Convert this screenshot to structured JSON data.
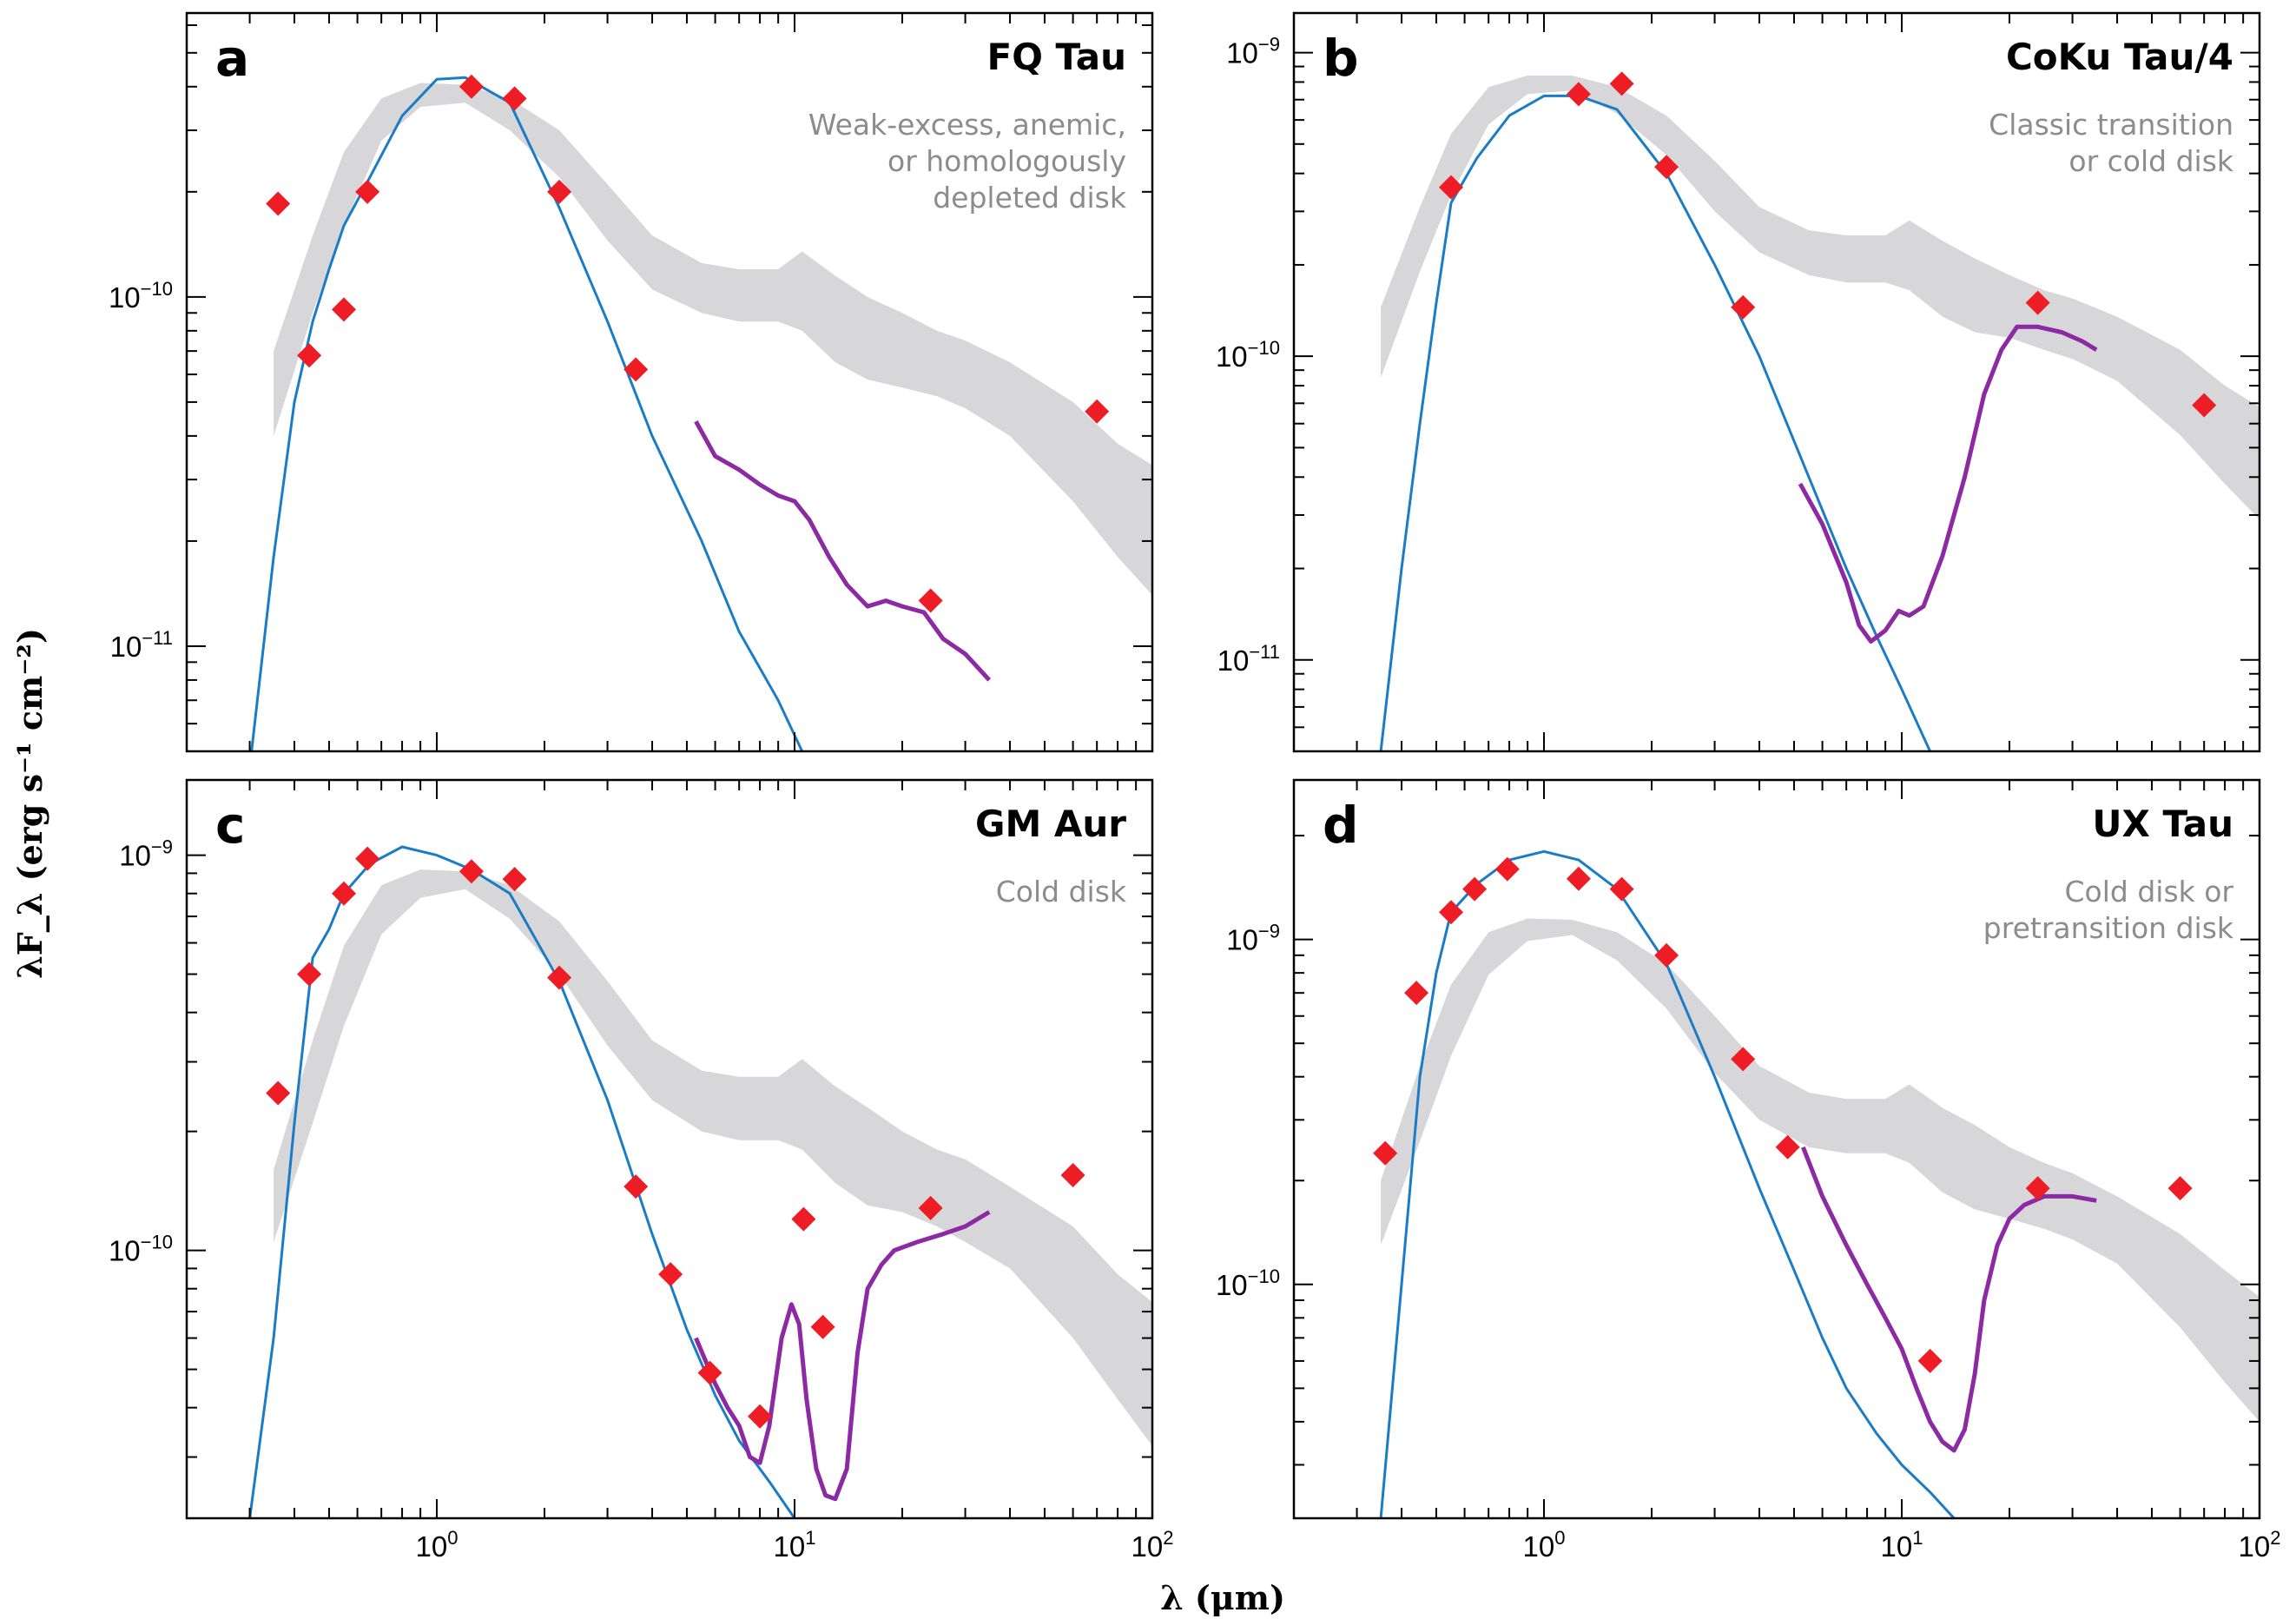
{
  "figure": {
    "xlabel": "λ (μm)",
    "ylabel": "λF_λ (erg s⁻¹ cm⁻²)"
  },
  "colors": {
    "photosphere": "#1a7cc6",
    "irs": "#8b2aa3",
    "photometry": "#ee1c24",
    "median_band": "#d7d7d9",
    "frame": "#000000",
    "class_text": "#8c8c8c"
  },
  "chart_data": [
    {
      "type": "line",
      "panel": "a",
      "star": "FQ Tau",
      "classification": [
        "Weak-excess, anemic,",
        "or homologously",
        "depleted disk"
      ],
      "x_scale": "log",
      "y_scale": "log",
      "xlim": [
        0.2,
        100
      ],
      "ylim": [
        5e-12,
        6.5e-10
      ],
      "y_ticks": [
        {
          "v": 1e-10,
          "m": "10",
          "e": "−10"
        },
        {
          "v": 1e-11,
          "m": "10",
          "e": "−11"
        }
      ],
      "x_ticks": [],
      "photosphere": {
        "x": [
          0.3,
          0.35,
          0.4,
          0.45,
          0.5,
          0.55,
          0.65,
          0.8,
          1.0,
          1.2,
          1.6,
          2.2,
          3.0,
          4.0,
          5.5,
          7.0,
          9.0,
          10.5
        ],
        "y": [
          4.5e-12,
          1.8e-11,
          5e-11,
          8.5e-11,
          1.2e-10,
          1.6e-10,
          2.2e-10,
          3.3e-10,
          4.2e-10,
          4.25e-10,
          3.6e-10,
          1.8e-10,
          8.5e-11,
          4e-11,
          2e-11,
          1.1e-11,
          7e-12,
          5e-12
        ]
      },
      "irs": {
        "x": [
          5.3,
          6.0,
          7.0,
          8.0,
          9.0,
          10.0,
          11.0,
          12.5,
          14.0,
          16.0,
          18.0,
          20.0,
          23.0,
          26.0,
          30.0,
          35.0
        ],
        "y": [
          4.4e-11,
          3.5e-11,
          3.2e-11,
          2.9e-11,
          2.7e-11,
          2.6e-11,
          2.3e-11,
          1.8e-11,
          1.5e-11,
          1.3e-11,
          1.35e-11,
          1.3e-11,
          1.25e-11,
          1.05e-11,
          9.5e-12,
          8e-12
        ]
      },
      "photometry": {
        "x": [
          0.36,
          0.44,
          0.55,
          0.64,
          1.25,
          1.65,
          2.2,
          3.6,
          24,
          70
        ],
        "y": [
          1.85e-10,
          6.8e-11,
          9.2e-11,
          2e-10,
          4e-10,
          3.7e-10,
          2e-10,
          6.2e-11,
          1.35e-11,
          4.7e-11
        ]
      },
      "median_band": {
        "x": [
          0.35,
          0.45,
          0.55,
          0.7,
          0.9,
          1.2,
          1.6,
          2.2,
          3.0,
          4.0,
          5.5,
          7.0,
          9.0,
          10.5,
          13.0,
          16.0,
          20.0,
          25.0,
          30.0,
          40.0,
          60.0,
          80.0,
          100.0
        ],
        "lo": [
          4e-11,
          9e-11,
          1.6e-10,
          2.8e-10,
          3.5e-10,
          3.6e-10,
          3e-10,
          2.2e-10,
          1.45e-10,
          1.05e-10,
          9e-11,
          8.5e-11,
          8.5e-11,
          8e-11,
          6.5e-11,
          5.8e-11,
          5.5e-11,
          5.2e-11,
          4.8e-11,
          4e-11,
          2.6e-11,
          1.8e-11,
          1.4e-11
        ],
        "hi": [
          7e-11,
          1.5e-10,
          2.6e-10,
          3.7e-10,
          4.1e-10,
          4.05e-10,
          3.7e-10,
          3e-10,
          2.1e-10,
          1.5e-10,
          1.25e-10,
          1.2e-10,
          1.2e-10,
          1.35e-10,
          1.15e-10,
          1e-10,
          9e-11,
          8e-11,
          7.5e-11,
          6.5e-11,
          5e-11,
          3.8e-11,
          3.3e-11
        ]
      }
    },
    {
      "type": "line",
      "panel": "b",
      "star": "CoKu Tau/4",
      "classification": [
        "Classic transition",
        "or cold disk"
      ],
      "x_scale": "log",
      "y_scale": "log",
      "xlim": [
        0.2,
        100
      ],
      "ylim": [
        5e-12,
        1.35e-09
      ],
      "y_ticks": [
        {
          "v": 1e-09,
          "m": "10",
          "e": "−9"
        },
        {
          "v": 1e-10,
          "m": "10",
          "e": "−10"
        },
        {
          "v": 1e-11,
          "m": "10",
          "e": "−11"
        }
      ],
      "x_ticks": [],
      "photosphere": {
        "x": [
          0.35,
          0.4,
          0.45,
          0.5,
          0.55,
          0.65,
          0.8,
          1.0,
          1.25,
          1.6,
          2.2,
          3.0,
          4.0,
          5.5,
          7.0,
          8.5,
          10.0,
          12.0
        ],
        "y": [
          5e-12,
          2e-11,
          6e-11,
          1.5e-10,
          3.2e-10,
          4.5e-10,
          6.2e-10,
          7.2e-10,
          7.2e-10,
          6.5e-10,
          4e-10,
          2e-10,
          1e-10,
          4e-11,
          2e-11,
          1.2e-11,
          8e-12,
          5e-12
        ]
      },
      "irs": {
        "x": [
          5.2,
          6.0,
          7.0,
          7.6,
          8.2,
          9.0,
          9.8,
          10.5,
          11.5,
          13.0,
          15.0,
          17.0,
          19.0,
          21.0,
          24.0,
          28.0,
          32.0,
          35.0
        ],
        "y": [
          3.8e-11,
          2.8e-11,
          1.8e-11,
          1.3e-11,
          1.15e-11,
          1.25e-11,
          1.45e-11,
          1.4e-11,
          1.5e-11,
          2.2e-11,
          4e-11,
          7.5e-11,
          1.05e-10,
          1.25e-10,
          1.25e-10,
          1.2e-10,
          1.12e-10,
          1.05e-10
        ]
      },
      "photometry": {
        "x": [
          0.55,
          1.25,
          1.65,
          2.2,
          3.6,
          24,
          70
        ],
        "y": [
          3.6e-10,
          7.3e-10,
          7.9e-10,
          4.2e-10,
          1.45e-10,
          1.5e-10,
          6.9e-11
        ]
      },
      "median_band": {
        "x": [
          0.35,
          0.45,
          0.55,
          0.7,
          0.9,
          1.2,
          1.6,
          2.2,
          3.0,
          4.0,
          5.5,
          7.0,
          9.0,
          10.5,
          13.0,
          16.0,
          20.0,
          25.0,
          30.0,
          40.0,
          60.0,
          80.0,
          100.0
        ],
        "lo": [
          8.5e-11,
          1.9e-10,
          3.4e-10,
          5.8e-10,
          7.3e-10,
          7.5e-10,
          6.3e-10,
          4.6e-10,
          3e-10,
          2.2e-10,
          1.85e-10,
          1.75e-10,
          1.75e-10,
          1.65e-10,
          1.35e-10,
          1.2e-10,
          1.15e-10,
          1.05e-10,
          9.8e-11,
          8.3e-11,
          5.5e-11,
          3.8e-11,
          2.9e-11
        ],
        "hi": [
          1.45e-10,
          3.1e-10,
          5.4e-10,
          7.7e-10,
          8.4e-10,
          8.4e-10,
          7.7e-10,
          6.2e-10,
          4.4e-10,
          3.1e-10,
          2.6e-10,
          2.5e-10,
          2.5e-10,
          2.8e-10,
          2.4e-10,
          2.1e-10,
          1.85e-10,
          1.65e-10,
          1.55e-10,
          1.35e-10,
          1.05e-10,
          8e-11,
          6.8e-11
        ]
      }
    },
    {
      "type": "line",
      "panel": "c",
      "star": "GM Aur",
      "classification": [
        "Cold disk"
      ],
      "x_scale": "log",
      "y_scale": "log",
      "xlim": [
        0.2,
        100
      ],
      "ylim": [
        2.1e-11,
        1.55e-09
      ],
      "y_ticks": [
        {
          "v": 1e-09,
          "m": "10",
          "e": "−9"
        },
        {
          "v": 1e-10,
          "m": "10",
          "e": "−10"
        }
      ],
      "x_ticks": [
        {
          "v": 1,
          "m": "10",
          "e": "0"
        },
        {
          "v": 10,
          "m": "10",
          "e": "1"
        },
        {
          "v": 100,
          "m": "10",
          "e": "2"
        }
      ],
      "photosphere": {
        "x": [
          0.3,
          0.35,
          0.4,
          0.45,
          0.5,
          0.55,
          0.65,
          0.8,
          1.0,
          1.25,
          1.6,
          2.2,
          3.0,
          4.0,
          5.0,
          6.0,
          7.0,
          8.5,
          10.0
        ],
        "y": [
          2.1e-11,
          6e-11,
          2.1e-10,
          5.5e-10,
          6.5e-10,
          8e-10,
          9.5e-10,
          1.05e-09,
          1e-09,
          9.2e-10,
          8e-10,
          4.8e-10,
          2.4e-10,
          1.1e-10,
          6.3e-11,
          4.3e-11,
          3.3e-11,
          2.6e-11,
          2.1e-11
        ]
      },
      "irs": {
        "x": [
          5.3,
          6.0,
          6.5,
          7.0,
          7.5,
          8.0,
          8.5,
          9.2,
          9.8,
          10.3,
          10.8,
          11.5,
          12.2,
          13.0,
          14.0,
          15.0,
          16.0,
          17.5,
          19.0,
          22.0,
          26.0,
          30.0,
          35.0
        ],
        "y": [
          6e-11,
          4.6e-11,
          4e-11,
          3.6e-11,
          3e-11,
          2.9e-11,
          3.6e-11,
          6e-11,
          7.3e-11,
          6.5e-11,
          4.2e-11,
          2.8e-11,
          2.4e-11,
          2.35e-11,
          2.8e-11,
          5.5e-11,
          8e-11,
          9.2e-11,
          1e-10,
          1.05e-10,
          1.1e-10,
          1.15e-10,
          1.25e-10
        ]
      },
      "photometry": {
        "x": [
          0.36,
          0.44,
          0.55,
          0.64,
          1.25,
          1.65,
          2.2,
          3.6,
          4.5,
          5.8,
          8.0,
          10.6,
          12.0,
          24,
          60
        ],
        "y": [
          2.5e-10,
          5e-10,
          8e-10,
          9.8e-10,
          9.1e-10,
          8.7e-10,
          4.9e-10,
          1.45e-10,
          8.7e-11,
          4.9e-11,
          3.8e-11,
          1.2e-10,
          6.4e-11,
          1.28e-10,
          1.55e-10
        ]
      },
      "median_band": {
        "x": [
          0.35,
          0.45,
          0.55,
          0.7,
          0.9,
          1.2,
          1.6,
          2.2,
          3.0,
          4.0,
          5.5,
          7.0,
          9.0,
          10.5,
          13.0,
          16.0,
          20.0,
          25.0,
          30.0,
          40.0,
          60.0,
          80.0,
          100.0
        ],
        "lo": [
          1.05e-10,
          2.1e-10,
          3.7e-10,
          6.3e-10,
          7.8e-10,
          8.2e-10,
          6.9e-10,
          5e-10,
          3.3e-10,
          2.4e-10,
          2e-10,
          1.9e-10,
          1.9e-10,
          1.8e-10,
          1.48e-10,
          1.3e-10,
          1.25e-10,
          1.15e-10,
          1.05e-10,
          9e-11,
          6e-11,
          4.2e-11,
          3.2e-11
        ],
        "hi": [
          1.6e-10,
          3.4e-10,
          5.9e-10,
          8.4e-10,
          9.2e-10,
          9.1e-10,
          8.4e-10,
          6.8e-10,
          4.8e-10,
          3.4e-10,
          2.85e-10,
          2.75e-10,
          2.75e-10,
          3.05e-10,
          2.6e-10,
          2.3e-10,
          2e-10,
          1.8e-10,
          1.7e-10,
          1.45e-10,
          1.15e-10,
          8.7e-11,
          7.4e-11
        ]
      }
    },
    {
      "type": "line",
      "panel": "d",
      "star": "UX Tau",
      "classification": [
        "Cold disk or",
        "pretransition disk"
      ],
      "x_scale": "log",
      "y_scale": "log",
      "xlim": [
        0.2,
        100
      ],
      "ylim": [
        2.1e-11,
        2.9e-09
      ],
      "y_ticks": [
        {
          "v": 1e-09,
          "m": "10",
          "e": "−9"
        },
        {
          "v": 1e-10,
          "m": "10",
          "e": "−10"
        }
      ],
      "x_ticks": [
        {
          "v": 1,
          "m": "10",
          "e": "0"
        },
        {
          "v": 10,
          "m": "10",
          "e": "1"
        },
        {
          "v": 100,
          "m": "10",
          "e": "2"
        }
      ],
      "photosphere": {
        "x": [
          0.35,
          0.4,
          0.45,
          0.5,
          0.55,
          0.65,
          0.8,
          1.0,
          1.25,
          1.6,
          2.2,
          3.0,
          4.0,
          5.0,
          6.0,
          7.0,
          8.5,
          10.0,
          12.0,
          14.0
        ],
        "y": [
          2.1e-11,
          1e-10,
          4e-10,
          8e-10,
          1.2e-09,
          1.45e-09,
          1.7e-09,
          1.8e-09,
          1.7e-09,
          1.4e-09,
          8.5e-10,
          4e-10,
          1.9e-10,
          1.1e-10,
          7e-11,
          5e-11,
          3.7e-11,
          3e-11,
          2.5e-11,
          2.1e-11
        ]
      },
      "irs": {
        "x": [
          5.3,
          6.0,
          7.0,
          8.0,
          9.0,
          10.0,
          11.0,
          12.0,
          13.0,
          14.0,
          15.0,
          16.0,
          17.0,
          18.5,
          20.0,
          22.0,
          25.0,
          30.0,
          35.0
        ],
        "y": [
          2.5e-10,
          1.8e-10,
          1.3e-10,
          1e-10,
          8e-11,
          6.5e-11,
          5e-11,
          4e-11,
          3.5e-11,
          3.3e-11,
          3.8e-11,
          5.5e-11,
          9e-11,
          1.3e-10,
          1.55e-10,
          1.7e-10,
          1.8e-10,
          1.8e-10,
          1.75e-10
        ]
      },
      "photometry": {
        "x": [
          0.36,
          0.44,
          0.55,
          0.64,
          0.79,
          1.25,
          1.65,
          2.2,
          3.6,
          4.8,
          12.0,
          24,
          60
        ],
        "y": [
          2.4e-10,
          7e-10,
          1.2e-09,
          1.4e-09,
          1.6e-09,
          1.5e-09,
          1.4e-09,
          9e-10,
          4.5e-10,
          2.5e-10,
          6e-11,
          1.9e-10,
          1.9e-10
        ]
      },
      "median_band": {
        "x": [
          0.35,
          0.45,
          0.55,
          0.7,
          0.9,
          1.2,
          1.6,
          2.2,
          3.0,
          4.0,
          5.5,
          7.0,
          9.0,
          10.5,
          13.0,
          16.0,
          20.0,
          25.0,
          30.0,
          40.0,
          60.0,
          80.0,
          100.0
        ],
        "lo": [
          1.3e-10,
          2.6e-10,
          4.6e-10,
          7.9e-10,
          9.9e-10,
          1.03e-09,
          8.7e-10,
          6.3e-10,
          4.1e-10,
          3e-10,
          2.5e-10,
          2.4e-10,
          2.4e-10,
          2.25e-10,
          1.85e-10,
          1.65e-10,
          1.55e-10,
          1.45e-10,
          1.35e-10,
          1.15e-10,
          7.5e-11,
          5.2e-11,
          4e-11
        ],
        "hi": [
          2e-10,
          4.3e-10,
          7.4e-10,
          1.05e-09,
          1.15e-09,
          1.14e-09,
          1.05e-09,
          8.5e-10,
          6e-10,
          4.3e-10,
          3.6e-10,
          3.45e-10,
          3.45e-10,
          3.8e-10,
          3.25e-10,
          2.9e-10,
          2.5e-10,
          2.25e-10,
          2.1e-10,
          1.8e-10,
          1.4e-10,
          1.1e-10,
          9.2e-11
        ]
      }
    }
  ]
}
